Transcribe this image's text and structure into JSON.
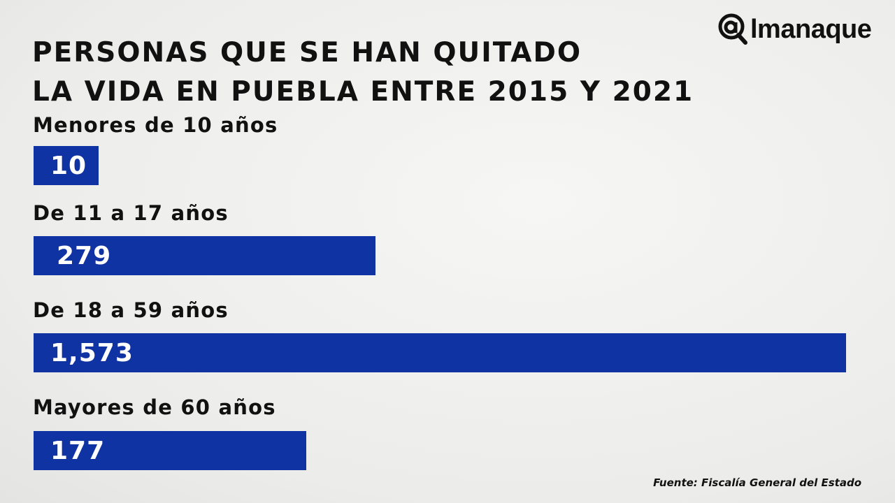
{
  "logo": {
    "text": "almanaque",
    "icon": "at-magnifier-icon"
  },
  "chart_data": {
    "type": "bar",
    "orientation": "horizontal",
    "title": [
      "PERSONAS QUE SE HAN QUITADO",
      "LA VIDA EN PUEBLA ENTRE 2015 Y 2021"
    ],
    "categories": [
      "Menores de 10 años",
      "De 11 a 17 años",
      "De 18 a 59 años",
      "Mayores de 60 años"
    ],
    "values": [
      10,
      279,
      1573,
      177
    ],
    "value_labels": [
      "10",
      "279",
      "1,573",
      "177"
    ],
    "bar_color": "#1033a3",
    "grid": false,
    "source": "Fuente:  Fiscalía General del Estado"
  }
}
